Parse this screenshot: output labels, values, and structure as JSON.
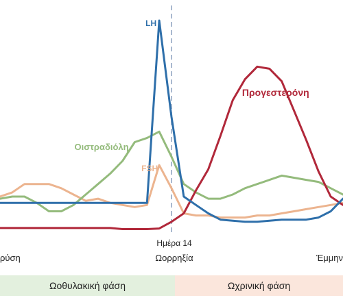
{
  "chart_data": {
    "type": "line",
    "title": "",
    "xlabel": "",
    "ylabel": "",
    "x": [
      0,
      1,
      2,
      3,
      4,
      5,
      6,
      7,
      8,
      9,
      10,
      11,
      12,
      13,
      14,
      15,
      16,
      17,
      18,
      19,
      20,
      21,
      22,
      23,
      24,
      25,
      26,
      27,
      28
    ],
    "xlim": [
      0,
      28
    ],
    "ylim": [
      0,
      100
    ],
    "grid": false,
    "legend": "inline labels",
    "colors": {
      "LH": "#2e6faa",
      "FSH": "#ecb48f",
      "estradiol": "#94bb7c",
      "progesterone": "#b1283a",
      "ovulation_line": "#a9b9cf"
    },
    "series": [
      {
        "key": "LH",
        "name": "LH",
        "values": [
          13,
          13,
          13,
          13,
          13,
          13,
          13,
          13,
          13,
          13,
          13,
          13,
          13,
          100,
          54,
          16,
          12,
          8,
          5,
          4.5,
          4,
          4,
          4.5,
          5,
          5,
          5,
          6,
          9,
          15
        ]
      },
      {
        "key": "FSH",
        "name": "FSH",
        "values": [
          16,
          18,
          22,
          22,
          22,
          20,
          17,
          14,
          15,
          13,
          12,
          11,
          12,
          31,
          20,
          8,
          7,
          7,
          6,
          6,
          6,
          7,
          7,
          8,
          9,
          10,
          11,
          12,
          13
        ]
      },
      {
        "key": "estradiol",
        "name": "Οιστραδιόλη",
        "values": [
          15,
          16,
          16,
          13,
          9,
          9,
          12,
          17,
          22,
          27,
          33,
          42,
          44,
          47,
          35,
          22,
          18,
          15,
          15,
          17,
          20,
          22,
          24,
          26,
          25,
          24,
          23,
          20,
          17
        ]
      },
      {
        "key": "progesterone",
        "name": "Προγεστερόνη",
        "values": [
          1,
          1,
          1,
          1,
          1,
          1,
          1,
          1,
          1,
          1,
          0.5,
          0.5,
          0.5,
          0.8,
          4,
          8,
          19,
          29,
          45,
          62,
          72,
          78,
          77,
          71,
          57,
          43,
          28,
          16,
          12
        ]
      }
    ],
    "annotations": {
      "ovulation_day": "Ημέρα 14",
      "ovulation": "Ωορρηξία",
      "menstruation_start": "ρύση",
      "menstruation_end": "Έμμην"
    },
    "phases": {
      "follicular": "Ωοθυλακική φάση",
      "luteal": "Ωχρινική φάση"
    }
  }
}
